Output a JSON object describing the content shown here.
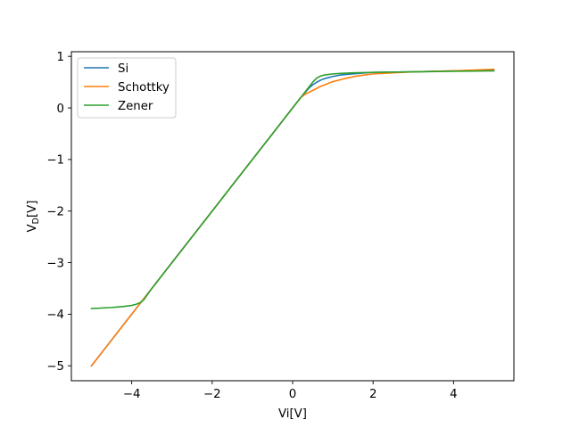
{
  "chart_data": {
    "type": "line",
    "title": "",
    "xlabel": "Vi[V]",
    "ylabel_main": "V",
    "ylabel_sub": "D",
    "ylabel_unit": "[V]",
    "xlim": [
      -5.5,
      5.5
    ],
    "ylim": [
      -5.29,
      1.09
    ],
    "xticks": [
      -4,
      -2,
      0,
      2,
      4
    ],
    "xtick_labels": [
      "−4",
      "−2",
      "0",
      "2",
      "4"
    ],
    "yticks": [
      -5,
      -4,
      -3,
      -2,
      -1,
      0,
      1
    ],
    "ytick_labels": [
      "−5",
      "−4",
      "−3",
      "−2",
      "−1",
      "0",
      "1"
    ],
    "grid": false,
    "legend_position": "top-left",
    "series": [
      {
        "name": "Si",
        "color": "#1f77b4",
        "x": [
          -5,
          -4.5,
          -4,
          -3.5,
          -3,
          -2.5,
          -2,
          -1.5,
          -1,
          -0.5,
          0,
          0.2,
          0.4,
          0.5,
          0.6,
          0.7,
          0.8,
          1.0,
          1.2,
          1.5,
          2,
          3,
          4,
          5
        ],
        "y": [
          -5,
          -4.5,
          -4,
          -3.5,
          -3,
          -2.5,
          -2,
          -1.5,
          -1,
          -0.5,
          0,
          0.2,
          0.38,
          0.45,
          0.5,
          0.54,
          0.57,
          0.61,
          0.64,
          0.66,
          0.69,
          0.7,
          0.72,
          0.73
        ]
      },
      {
        "name": "Schottky",
        "color": "#ff7f0e",
        "x": [
          -5,
          -4.5,
          -4,
          -3.5,
          -3,
          -2.5,
          -2,
          -1.5,
          -1,
          -0.5,
          0,
          0.2,
          0.3,
          0.5,
          0.7,
          1.0,
          1.3,
          1.6,
          2,
          2.5,
          3,
          4,
          5
        ],
        "y": [
          -5,
          -4.5,
          -4,
          -3.5,
          -3,
          -2.5,
          -2,
          -1.5,
          -1,
          -0.5,
          0,
          0.2,
          0.26,
          0.34,
          0.42,
          0.51,
          0.57,
          0.62,
          0.66,
          0.68,
          0.7,
          0.72,
          0.75
        ]
      },
      {
        "name": "Zener",
        "color": "#2ca02c",
        "x": [
          -5,
          -4.5,
          -4.2,
          -4.0,
          -3.9,
          -3.8,
          -3.7,
          -3.5,
          -3,
          -2.5,
          -2,
          -1.5,
          -1,
          -0.5,
          0,
          0.2,
          0.4,
          0.5,
          0.6,
          0.7,
          0.8,
          1.0,
          1.2,
          1.5,
          2,
          3,
          4,
          5
        ],
        "y": [
          -3.89,
          -3.87,
          -3.85,
          -3.83,
          -3.81,
          -3.78,
          -3.72,
          -3.5,
          -3,
          -2.5,
          -2,
          -1.5,
          -1,
          -0.5,
          0,
          0.2,
          0.4,
          0.5,
          0.58,
          0.62,
          0.64,
          0.66,
          0.67,
          0.68,
          0.69,
          0.7,
          0.71,
          0.72
        ]
      }
    ]
  }
}
